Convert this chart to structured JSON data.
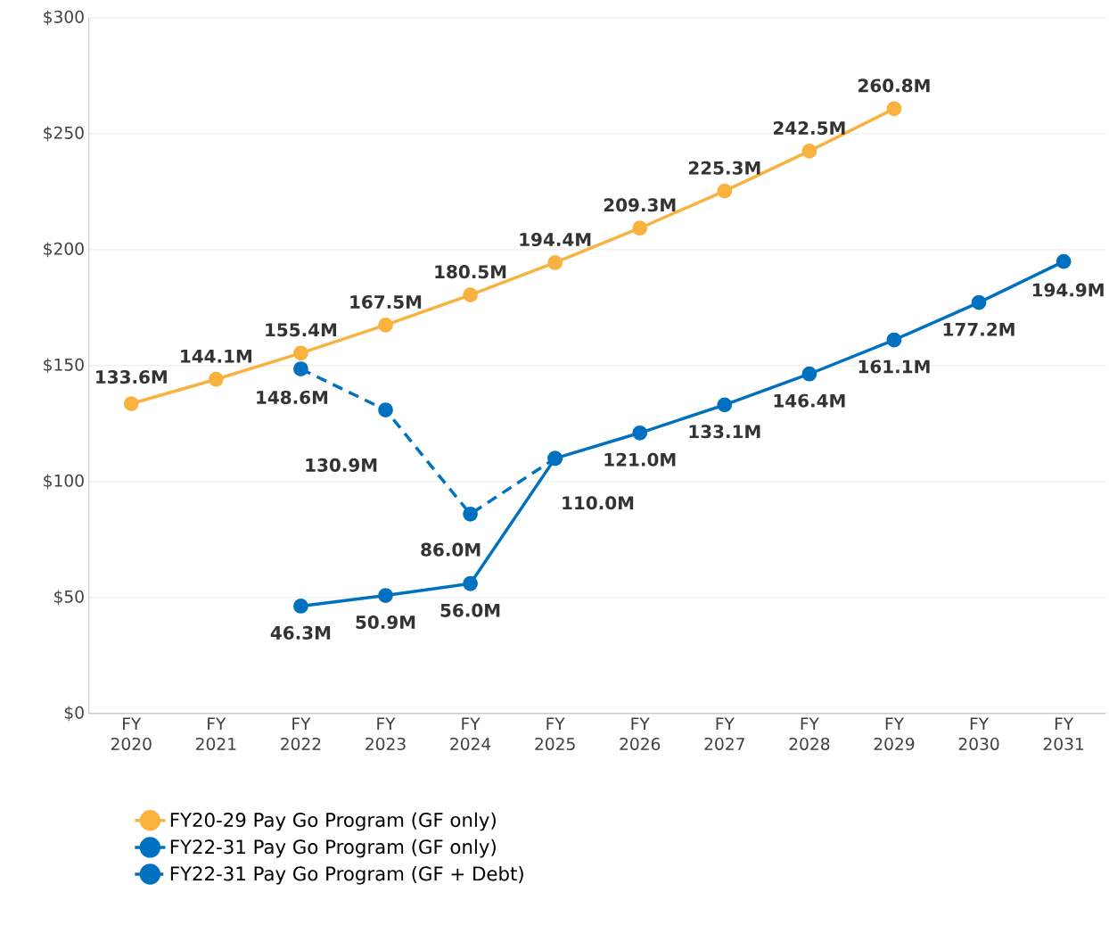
{
  "chart_data": {
    "type": "line",
    "categories": [
      "FY 2020",
      "FY 2021",
      "FY 2022",
      "FY 2023",
      "FY 2024",
      "FY 2025",
      "FY 2026",
      "FY 2027",
      "FY 2028",
      "FY 2029",
      "FY 2030",
      "FY 2031"
    ],
    "series": [
      {
        "name": "FY20-29 Pay Go Program (GF only)",
        "color": "#f9b13f",
        "line_style": "solid",
        "values": [
          133.6,
          144.1,
          155.4,
          167.5,
          180.5,
          194.4,
          209.3,
          225.3,
          242.5,
          260.8,
          null,
          null
        ],
        "value_labels": [
          "133.6M",
          "144.1M",
          "155.4M",
          "167.5M",
          "180.5M",
          "194.4M",
          "209.3M",
          "225.3M",
          "242.5M",
          "260.8M",
          null,
          null
        ]
      },
      {
        "name": "FY22-31 Pay Go Program (GF only)",
        "color": "#0070c0",
        "line_style": "solid",
        "values": [
          null,
          null,
          46.3,
          50.9,
          56.0,
          110.0,
          121.0,
          133.1,
          146.4,
          161.1,
          177.2,
          194.9
        ],
        "value_labels": [
          null,
          null,
          "46.3M",
          "50.9M",
          "56.0M",
          null,
          "121.0M",
          "133.1M",
          "146.4M",
          "161.1M",
          "177.2M",
          "194.9M"
        ]
      },
      {
        "name": "FY22-31 Pay Go Program (GF + Debt)",
        "color": "#0070c0",
        "line_style": "dashed",
        "values": [
          null,
          null,
          148.6,
          130.9,
          86.0,
          110.0,
          null,
          null,
          null,
          null,
          null,
          null
        ],
        "value_labels": [
          null,
          null,
          "148.6M",
          "130.9M",
          "86.0M",
          "110.0M",
          null,
          null,
          null,
          null,
          null,
          null
        ]
      }
    ],
    "ylim": [
      0,
      300
    ],
    "yticks": [
      {
        "value": 0,
        "label": "$0"
      },
      {
        "value": 50,
        "label": "$50"
      },
      {
        "value": 100,
        "label": "$100"
      },
      {
        "value": 150,
        "label": "$150"
      },
      {
        "value": 200,
        "label": "$200"
      },
      {
        "value": 250,
        "label": "$250"
      },
      {
        "value": 300,
        "label": "$300"
      }
    ],
    "grid": "y",
    "legend": "bottom",
    "marker": "circle"
  }
}
